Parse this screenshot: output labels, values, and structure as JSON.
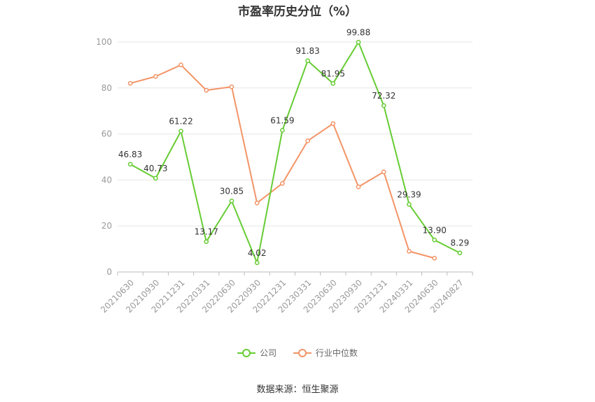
{
  "chart_data": {
    "type": "line",
    "title": "市盈率历史分位（%）",
    "categories": [
      "20210630",
      "20210930",
      "20211231",
      "20220331",
      "20220630",
      "20220930",
      "20221231",
      "20230331",
      "20230630",
      "20230930",
      "20231231",
      "20240331",
      "20240630",
      "20240827"
    ],
    "ylim": [
      0,
      100
    ],
    "yticks": [
      0,
      20,
      40,
      60,
      80,
      100
    ],
    "grid": true,
    "legend_position": "bottom",
    "series": [
      {
        "name": "公司",
        "color": "#66cc33",
        "values": [
          46.83,
          40.73,
          61.22,
          13.17,
          30.85,
          4.02,
          61.59,
          91.83,
          81.95,
          99.88,
          72.32,
          29.39,
          13.9,
          8.29
        ],
        "labels": [
          "46.83",
          "40.73",
          "61.22",
          "13.17",
          "30.85",
          "4.02",
          "61.59",
          "91.83",
          "81.95",
          "99.88",
          "72.32",
          "29.39",
          "13.90",
          "8.29"
        ]
      },
      {
        "name": "行业中位数",
        "color": "#f39467",
        "values": [
          82,
          85,
          90,
          79,
          80.5,
          30,
          38.5,
          57,
          64.5,
          37,
          43.5,
          9,
          6,
          null
        ]
      }
    ],
    "source": "数据来源：恒生聚源"
  }
}
